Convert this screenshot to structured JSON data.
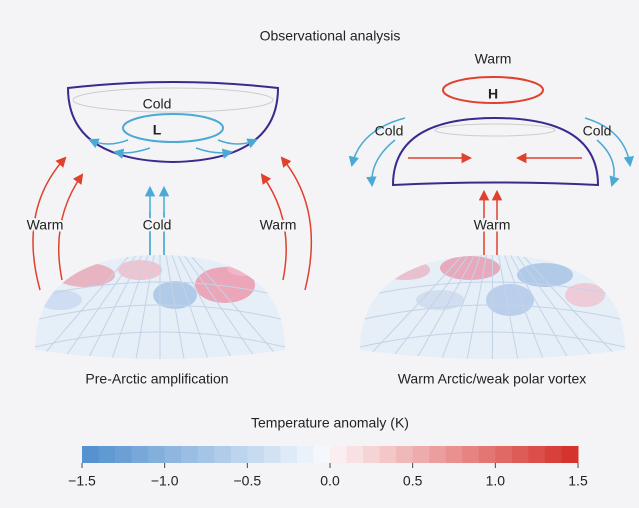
{
  "title": "Observational analysis",
  "panels": [
    {
      "caption": "Pre-Arctic amplification",
      "labels": {
        "top": "Cold",
        "center": "L",
        "left": "Warm",
        "middle": "Cold",
        "right": "Warm"
      }
    },
    {
      "caption": "Warm Arctic/weak polar vortex",
      "labels": {
        "top": "Warm",
        "center": "H",
        "left": "Cold",
        "right": "Cold",
        "middle": "Warm"
      }
    }
  ],
  "colorbar": {
    "title": "Temperature anomaly (K)",
    "lim": [
      -1.5,
      1.5
    ],
    "ticks": [
      {
        "value": -1.5,
        "label": "−1.5"
      },
      {
        "value": -1,
        "label": "−1.0"
      },
      {
        "value": -0.5,
        "label": "−0.5"
      },
      {
        "value": 0,
        "label": "0.0"
      },
      0.5,
      {
        "value": 1,
        "label": "1.0"
      },
      1.5
    ]
  }
}
